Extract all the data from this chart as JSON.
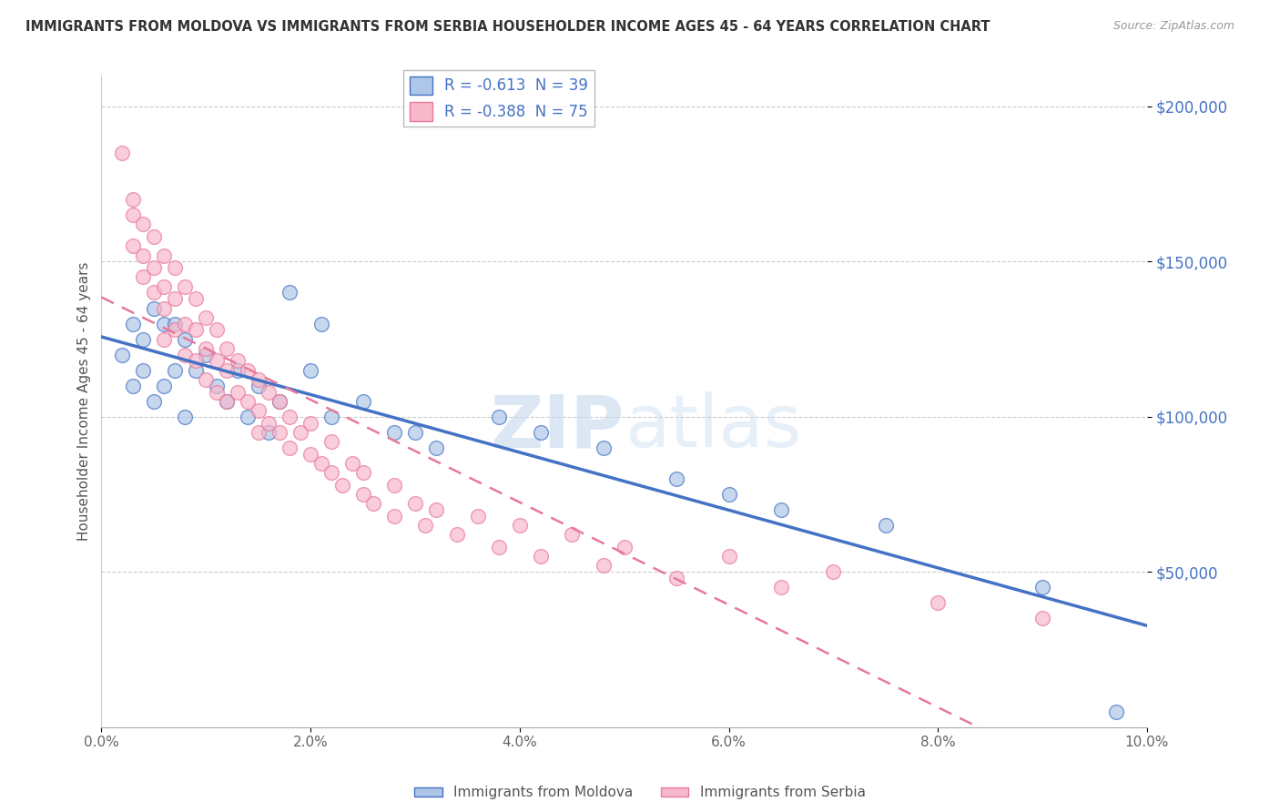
{
  "title": "IMMIGRANTS FROM MOLDOVA VS IMMIGRANTS FROM SERBIA HOUSEHOLDER INCOME AGES 45 - 64 YEARS CORRELATION CHART",
  "source": "Source: ZipAtlas.com",
  "ylabel": "Householder Income Ages 45 - 64 years",
  "xlim": [
    0.0,
    0.1
  ],
  "ylim": [
    0,
    210000
  ],
  "yticks": [
    50000,
    100000,
    150000,
    200000
  ],
  "ytick_labels": [
    "$50,000",
    "$100,000",
    "$150,000",
    "$200,000"
  ],
  "xtick_labels": [
    "0.0%",
    "2.0%",
    "4.0%",
    "6.0%",
    "8.0%",
    "10.0%"
  ],
  "xticks": [
    0.0,
    0.02,
    0.04,
    0.06,
    0.08,
    0.1
  ],
  "moldova_color": "#aec6e8",
  "serbia_color": "#f7b8cc",
  "moldova_line_color": "#4472c4",
  "serbia_line_color": "#e8799a",
  "moldova_R": -0.613,
  "moldova_N": 39,
  "serbia_R": -0.388,
  "serbia_N": 75,
  "watermark_zip": "ZIP",
  "watermark_atlas": "atlas",
  "legend_label_moldova": "Immigrants from Moldova",
  "legend_label_serbia": "Immigrants from Serbia",
  "background_color": "#ffffff",
  "moldova_x": [
    0.002,
    0.003,
    0.003,
    0.004,
    0.004,
    0.005,
    0.005,
    0.006,
    0.006,
    0.007,
    0.007,
    0.008,
    0.008,
    0.009,
    0.01,
    0.011,
    0.012,
    0.013,
    0.014,
    0.015,
    0.016,
    0.017,
    0.018,
    0.02,
    0.021,
    0.022,
    0.025,
    0.028,
    0.03,
    0.032,
    0.038,
    0.042,
    0.048,
    0.055,
    0.06,
    0.065,
    0.075,
    0.09,
    0.097
  ],
  "moldova_y": [
    120000,
    130000,
    110000,
    125000,
    115000,
    135000,
    105000,
    130000,
    110000,
    130000,
    115000,
    125000,
    100000,
    115000,
    120000,
    110000,
    105000,
    115000,
    100000,
    110000,
    95000,
    105000,
    140000,
    115000,
    130000,
    100000,
    105000,
    95000,
    95000,
    90000,
    100000,
    95000,
    90000,
    80000,
    75000,
    70000,
    65000,
    45000,
    5000
  ],
  "serbia_x": [
    0.002,
    0.003,
    0.003,
    0.003,
    0.004,
    0.004,
    0.004,
    0.005,
    0.005,
    0.005,
    0.006,
    0.006,
    0.006,
    0.006,
    0.007,
    0.007,
    0.007,
    0.008,
    0.008,
    0.008,
    0.009,
    0.009,
    0.009,
    0.01,
    0.01,
    0.01,
    0.011,
    0.011,
    0.011,
    0.012,
    0.012,
    0.012,
    0.013,
    0.013,
    0.014,
    0.014,
    0.015,
    0.015,
    0.015,
    0.016,
    0.016,
    0.017,
    0.017,
    0.018,
    0.018,
    0.019,
    0.02,
    0.02,
    0.021,
    0.022,
    0.022,
    0.023,
    0.024,
    0.025,
    0.025,
    0.026,
    0.028,
    0.028,
    0.03,
    0.031,
    0.032,
    0.034,
    0.036,
    0.038,
    0.04,
    0.042,
    0.045,
    0.048,
    0.05,
    0.055,
    0.06,
    0.065,
    0.07,
    0.08,
    0.09
  ],
  "serbia_y": [
    185000,
    170000,
    165000,
    155000,
    162000,
    152000,
    145000,
    158000,
    148000,
    140000,
    152000,
    142000,
    135000,
    125000,
    148000,
    138000,
    128000,
    142000,
    130000,
    120000,
    138000,
    128000,
    118000,
    132000,
    122000,
    112000,
    128000,
    118000,
    108000,
    122000,
    115000,
    105000,
    118000,
    108000,
    115000,
    105000,
    112000,
    102000,
    95000,
    108000,
    98000,
    105000,
    95000,
    100000,
    90000,
    95000,
    88000,
    98000,
    85000,
    82000,
    92000,
    78000,
    85000,
    75000,
    82000,
    72000,
    78000,
    68000,
    72000,
    65000,
    70000,
    62000,
    68000,
    58000,
    65000,
    55000,
    62000,
    52000,
    58000,
    48000,
    55000,
    45000,
    50000,
    40000,
    35000
  ]
}
